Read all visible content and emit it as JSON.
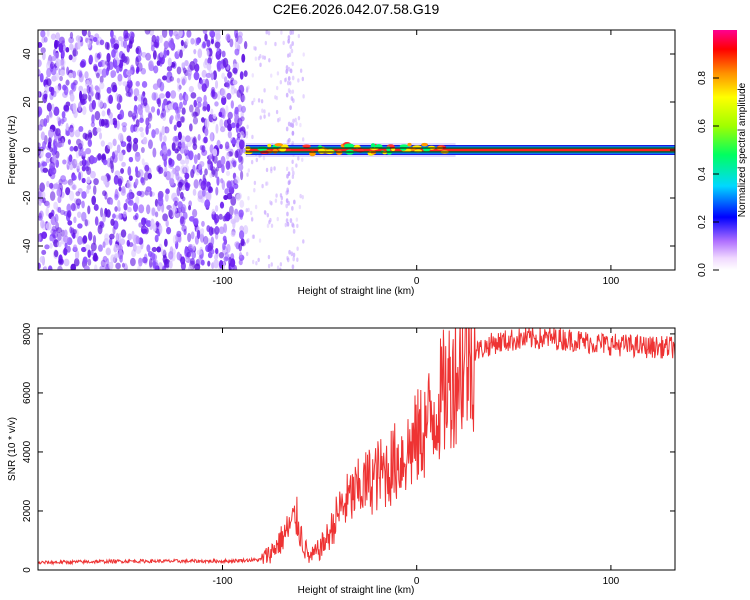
{
  "title": "C2E6.2026.042.07.58.G19",
  "chart_data": [
    {
      "type": "heatmap",
      "title": "C2E6.2026.042.07.58.G19",
      "xlabel": "Height of straight line (km)",
      "ylabel": "Frequency (Hz)",
      "xlim": [
        -195,
        133
      ],
      "ylim": [
        -50,
        50
      ],
      "xticks": [
        -100,
        0,
        100
      ],
      "xtick_labels": [
        "-100",
        "0",
        "100"
      ],
      "yticks": [
        -40,
        -20,
        0,
        20,
        40
      ],
      "ytick_labels": [
        "-40",
        "-20",
        "0",
        "20",
        "40"
      ],
      "colorbar": {
        "label": "Normalized spectral amplitude",
        "range": [
          0,
          1
        ],
        "ticks": [
          0.0,
          0.2,
          0.4,
          0.6,
          0.8
        ],
        "tick_labels": [
          "0.0",
          "0.2",
          "0.4",
          "0.6",
          "0.8"
        ]
      },
      "regions": [
        {
          "name": "noise",
          "x_range": [
            -195,
            -88
          ],
          "freq_range": [
            -50,
            50
          ],
          "amplitude": 0.15
        },
        {
          "name": "signal-trace",
          "x_range": [
            -88,
            133
          ],
          "frequency": 0,
          "amplitude": 0.95
        }
      ]
    },
    {
      "type": "line",
      "xlabel": "Height of straight line (km)",
      "ylabel": "SNR (10 * v/v)",
      "xlim": [
        -195,
        133
      ],
      "ylim": [
        0,
        8200
      ],
      "xticks": [
        -100,
        0,
        100
      ],
      "xtick_labels": [
        "-100",
        "0",
        "100"
      ],
      "yticks": [
        0,
        2000,
        4000,
        6000,
        8000
      ],
      "ytick_labels": [
        "0",
        "2000",
        "4000",
        "6000",
        "8000"
      ],
      "series": [
        {
          "name": "SNR",
          "color": "#ee3333",
          "x": [
            -195,
            -150,
            -100,
            -80,
            -75,
            -70,
            -65,
            -62,
            -58,
            -55,
            -50,
            -45,
            -40,
            -35,
            -30,
            -25,
            -20,
            -15,
            -10,
            -5,
            0,
            5,
            10,
            15,
            20,
            25,
            30,
            40,
            50,
            60,
            70,
            80,
            90,
            100,
            110,
            120,
            133
          ],
          "values": [
            250,
            300,
            300,
            350,
            600,
            1000,
            1500,
            1800,
            800,
            400,
            700,
            1200,
            2000,
            2400,
            2700,
            3000,
            3200,
            3400,
            3700,
            4000,
            4400,
            4900,
            5500,
            6100,
            6700,
            7100,
            7400,
            7700,
            7800,
            7850,
            7850,
            7800,
            7700,
            7650,
            7600,
            7550,
            7550
          ]
        }
      ]
    }
  ]
}
